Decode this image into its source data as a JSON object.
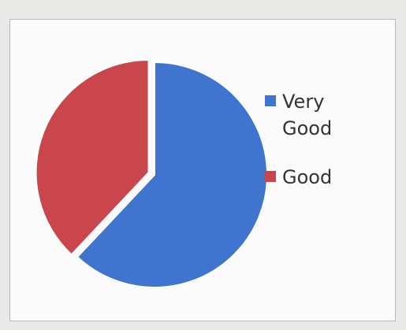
{
  "chart_data": {
    "type": "pie",
    "categories": [
      "Very Good",
      "Good"
    ],
    "values": [
      62,
      38
    ],
    "colors": [
      "#3f74cf",
      "#c9474c"
    ],
    "start_angle": 0,
    "direction": "clockwise",
    "explode": [
      0,
      1
    ]
  }
}
